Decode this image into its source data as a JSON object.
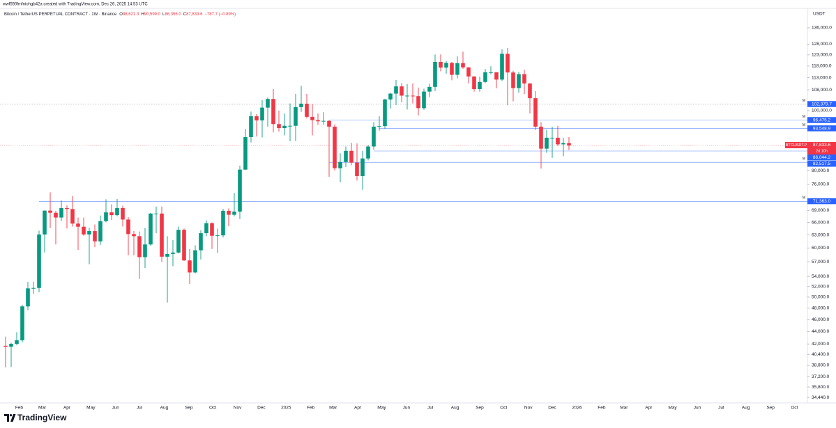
{
  "attribution": "wwf590fmfniohgb42a created with TradingView.com, Dec 26, 2025 14:53 UTC",
  "brand": "TradingView",
  "chart_data": {
    "type": "candlestick",
    "title": "Bitcoin / TetherUS PERPETUAL CONTRACT · 1W · Binance",
    "legend": [
      {
        "key": "O",
        "value": "88,621.3"
      },
      {
        "key": "H",
        "value": "90,599.0"
      },
      {
        "key": "L",
        "value": "86,355.0"
      },
      {
        "key": "C",
        "value": "87,833.6"
      }
    ],
    "change": "−787.7 (−0.89%)",
    "y_unit": "USDT",
    "up_color": "#089981",
    "down_color": "#f23645",
    "log_scale": true,
    "ylim": [
      33740,
      146200
    ],
    "yticks": [
      {
        "value": 136000,
        "label": "136,000.0"
      },
      {
        "value": 128000,
        "label": "128,000.0"
      },
      {
        "value": 123000,
        "label": "123,000.0"
      },
      {
        "value": 118000,
        "label": "118,000.0"
      },
      {
        "value": 113000,
        "label": "113,000.0"
      },
      {
        "value": 108000,
        "label": "108,000.0"
      },
      {
        "value": 100000,
        "label": "100,000.0"
      },
      {
        "value": 80000,
        "label": "80,000.0"
      },
      {
        "value": 76000,
        "label": "76,000.0"
      },
      {
        "value": 69000,
        "label": "69,000.0"
      },
      {
        "value": 66000,
        "label": "66,000.0"
      },
      {
        "value": 63000,
        "label": "63,000.0"
      },
      {
        "value": 60000,
        "label": "60,000.0"
      },
      {
        "value": 57000,
        "label": "57,000.0"
      },
      {
        "value": 54000,
        "label": "54,000.0"
      },
      {
        "value": 52000,
        "label": "52,000.0"
      },
      {
        "value": 50000,
        "label": "50,000.0"
      },
      {
        "value": 48000,
        "label": "48,000.0"
      },
      {
        "value": 46000,
        "label": "46,000.0"
      },
      {
        "value": 44000,
        "label": "44,000.0"
      },
      {
        "value": 42000,
        "label": "42,000.0"
      },
      {
        "value": 40400,
        "label": "40,400.0"
      },
      {
        "value": 38800,
        "label": "38,800.0"
      },
      {
        "value": 37200,
        "label": "37,200.0"
      },
      {
        "value": 35800,
        "label": "35,800.0"
      },
      {
        "value": 34440,
        "label": "34,440.0"
      }
    ],
    "xlim": [
      -1,
      143.75
    ],
    "xticks": [
      {
        "value": 2.43,
        "label": "Feb"
      },
      {
        "value": 6.57,
        "label": "Mar"
      },
      {
        "value": 11,
        "label": "Apr"
      },
      {
        "value": 15.29,
        "label": "May"
      },
      {
        "value": 19.71,
        "label": "Jun"
      },
      {
        "value": 24,
        "label": "Jul"
      },
      {
        "value": 28.43,
        "label": "Aug"
      },
      {
        "value": 32.86,
        "label": "Sep"
      },
      {
        "value": 37.14,
        "label": "Oct"
      },
      {
        "value": 41.57,
        "label": "Nov"
      },
      {
        "value": 45.86,
        "label": "Dec"
      },
      {
        "value": 50.29,
        "label": "2025"
      },
      {
        "value": 54.71,
        "label": "Feb"
      },
      {
        "value": 58.71,
        "label": "Mar"
      },
      {
        "value": 63.14,
        "label": "Apr"
      },
      {
        "value": 67.43,
        "label": "May"
      },
      {
        "value": 71.86,
        "label": "Jun"
      },
      {
        "value": 76.14,
        "label": "Jul"
      },
      {
        "value": 80.57,
        "label": "Aug"
      },
      {
        "value": 85,
        "label": "Sep"
      },
      {
        "value": 89.29,
        "label": "Oct"
      },
      {
        "value": 93.71,
        "label": "Nov"
      },
      {
        "value": 98,
        "label": "Dec"
      },
      {
        "value": 102.43,
        "label": "2026"
      },
      {
        "value": 106.86,
        "label": "Feb"
      },
      {
        "value": 110.86,
        "label": "Mar"
      },
      {
        "value": 115.29,
        "label": "Apr"
      },
      {
        "value": 119.57,
        "label": "May"
      },
      {
        "value": 124,
        "label": "Jun"
      },
      {
        "value": 128.29,
        "label": "Jul"
      },
      {
        "value": 132.71,
        "label": "Aug"
      },
      {
        "value": 137.14,
        "label": "Sep"
      },
      {
        "value": 141.43,
        "label": "Oct"
      }
    ],
    "candles": {
      "open": [
        41730,
        41580,
        42030,
        42580,
        48300,
        51650,
        51730,
        63100,
        68950,
        68400,
        67200,
        69600,
        69360,
        65700,
        64950,
        63100,
        63900,
        61500,
        66300,
        68500,
        67800,
        69600,
        66700,
        63200,
        62700,
        58000,
        60800,
        68200,
        68200,
        58100,
        58700,
        59000,
        64200,
        57300,
        54800,
        59500,
        63400,
        65800,
        62800,
        62900,
        68900,
        67900,
        68700,
        80300,
        90600,
        97900,
        96400,
        101100,
        104400,
        95100,
        93700,
        94500,
        94500,
        101300,
        102600,
        97700,
        96500,
        96100,
        96250,
        94200,
        80700,
        82600,
        86100,
        82400,
        78400,
        83700,
        87500,
        94200,
        94400,
        104200,
        106500,
        109400,
        105700,
        105700,
        105500,
        100900,
        107300,
        109200,
        119800,
        117300,
        119400,
        114200,
        119300,
        117400,
        113500,
        108300,
        111200,
        115300,
        115300,
        112200,
        123500,
        115200,
        108700,
        114500,
        110600,
        104700,
        94200,
        86800,
        90400,
        90400,
        88200,
        88621.3
      ],
      "high": [
        43180,
        42200,
        43880,
        48600,
        52900,
        52950,
        64000,
        69000,
        73800,
        68900,
        71600,
        70300,
        72800,
        67200,
        67200,
        64700,
        65500,
        67700,
        71900,
        70600,
        72000,
        70200,
        67300,
        63900,
        63800,
        64600,
        68400,
        70000,
        70000,
        62700,
        61800,
        65000,
        64500,
        59800,
        60600,
        64100,
        66500,
        66000,
        64500,
        69400,
        69500,
        73600,
        81500,
        93400,
        99600,
        98700,
        104000,
        105000,
        108300,
        100000,
        98900,
        102700,
        106400,
        109600,
        106400,
        102500,
        98900,
        99400,
        96500,
        95000,
        85300,
        87500,
        88700,
        88500,
        86100,
        88000,
        95800,
        97900,
        104500,
        106800,
        112000,
        110700,
        110400,
        110600,
        108900,
        108500,
        110500,
        123200,
        123200,
        120200,
        119800,
        122300,
        124500,
        117600,
        113600,
        113400,
        116700,
        117900,
        115400,
        125600,
        126200,
        115900,
        115500,
        116400,
        110700,
        107500,
        95800,
        93100,
        94200,
        94500,
        90400,
        90599
      ],
      "low": [
        38500,
        38550,
        41800,
        42250,
        47600,
        50600,
        50900,
        59000,
        64600,
        60800,
        66300,
        64500,
        65000,
        59600,
        62800,
        56500,
        60200,
        60700,
        66000,
        66600,
        67500,
        65000,
        58400,
        58400,
        53500,
        55700,
        60500,
        63400,
        57000,
        49000,
        56100,
        58800,
        57200,
        52500,
        54600,
        57500,
        62700,
        59800,
        58900,
        62400,
        65100,
        67500,
        66800,
        80200,
        88800,
        90800,
        90500,
        94200,
        92200,
        92500,
        91200,
        89200,
        89300,
        99500,
        97100,
        91200,
        94800,
        94900,
        78200,
        80000,
        76600,
        81100,
        81600,
        77100,
        74500,
        83100,
        86500,
        92800,
        93400,
        100700,
        102100,
        103100,
        100400,
        102700,
        98200,
        100300,
        105100,
        107500,
        115700,
        114700,
        111900,
        112700,
        116800,
        110600,
        107300,
        107300,
        110700,
        114400,
        108600,
        111600,
        102000,
        103500,
        106800,
        106300,
        98900,
        93000,
        80600,
        85500,
        83900,
        87600,
        84400,
        86355
      ],
      "close": [
        41580,
        42030,
        42580,
        48300,
        51650,
        51730,
        63100,
        68950,
        68400,
        67200,
        69600,
        69360,
        65700,
        64950,
        63100,
        63900,
        61500,
        66300,
        68500,
        67800,
        69600,
        66700,
        63200,
        62700,
        58000,
        60800,
        68200,
        68200,
        58100,
        58700,
        59000,
        64200,
        57300,
        54800,
        59500,
        63400,
        65800,
        62800,
        62900,
        68900,
        67900,
        68700,
        80300,
        90600,
        97900,
        96400,
        101100,
        104400,
        95100,
        93700,
        94500,
        94500,
        101300,
        102600,
        97700,
        96500,
        96100,
        96250,
        94200,
        80700,
        82600,
        86100,
        82400,
        78400,
        83700,
        87500,
        94200,
        94400,
        104200,
        106500,
        109400,
        105700,
        105700,
        105500,
        100900,
        107300,
        109200,
        119800,
        117300,
        119400,
        114200,
        119300,
        117400,
        113500,
        108300,
        111200,
        115300,
        115300,
        112200,
        123500,
        115200,
        108700,
        114500,
        110600,
        104700,
        94200,
        86800,
        90400,
        90400,
        88200,
        88621.3,
        87833.6
      ]
    },
    "levels": [
      {
        "value": 102379.7,
        "label": "102,379.7",
        "marker": "M",
        "start": -1,
        "style": "dotted"
      },
      {
        "value": 96475.2,
        "label": "96,475.2",
        "marker": "M",
        "start": 58,
        "style": "solid"
      },
      {
        "value": 93548.9,
        "label": "93,548.9",
        "marker": "M",
        "start": 67,
        "style": "solid"
      },
      {
        "value": 86044.2,
        "label": "86,044.2",
        "start": 66,
        "style": "solid"
      },
      {
        "value": 82517.5,
        "label": "82,517.5",
        "marker": "M",
        "start": 58,
        "style": "solid"
      },
      {
        "value": 71363.0,
        "label": "71,363.0",
        "marker": "M",
        "start": 6,
        "style": "solid"
      }
    ],
    "level_color": "#2962ff",
    "last_price": {
      "symbol": "BTCUSDT.P",
      "value": 87833.6,
      "label": "87,833.6",
      "countdown": "2d 10h"
    }
  }
}
